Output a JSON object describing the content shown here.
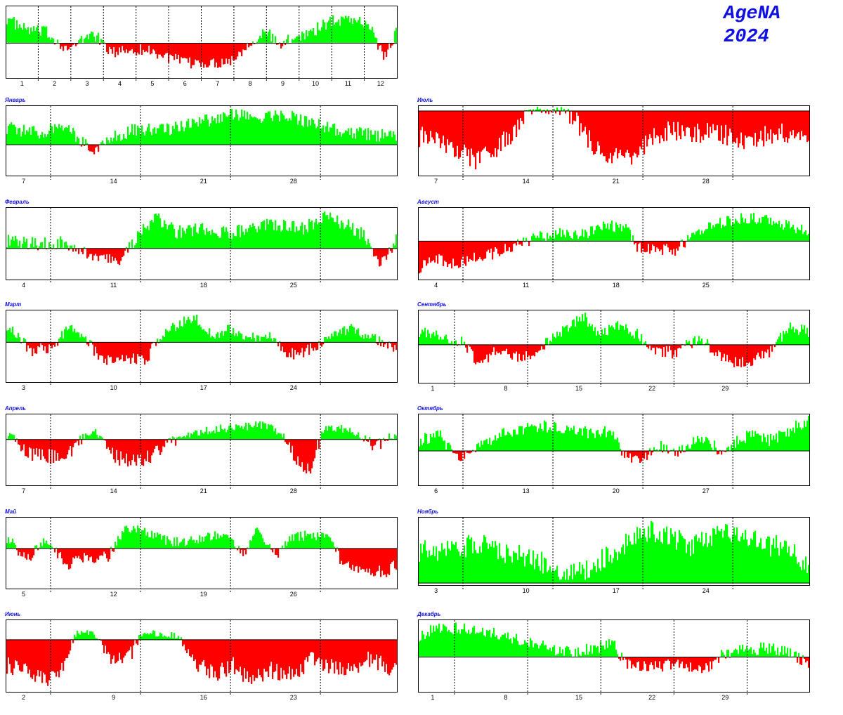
{
  "header": {
    "line1": "AgeNA",
    "line2": "2024"
  },
  "colors": {
    "positive": "#00ff00",
    "negative": "#ff0000",
    "frame": "#000000",
    "month_label": "#1010e0"
  },
  "chart_data": [
    {
      "type": "bar",
      "title": "",
      "axis_ticks": [
        "1",
        "2",
        "3",
        "4",
        "5",
        "6",
        "7",
        "8",
        "9",
        "10",
        "11",
        "12"
      ],
      "grid_dividers": 11,
      "profile": [
        [
          0,
          0.7
        ],
        [
          0.04,
          0.4
        ],
        [
          0.1,
          0.3
        ],
        [
          0.16,
          -0.2
        ],
        [
          0.22,
          0.3
        ],
        [
          0.27,
          -0.3
        ],
        [
          0.3,
          -0.2
        ],
        [
          0.36,
          -0.2
        ],
        [
          0.41,
          -0.4
        ],
        [
          0.46,
          -0.6
        ],
        [
          0.53,
          -0.6
        ],
        [
          0.58,
          -0.5
        ],
        [
          0.63,
          0.1
        ],
        [
          0.67,
          0.3
        ],
        [
          0.7,
          -0.1
        ],
        [
          0.74,
          0.2
        ],
        [
          0.78,
          0.3
        ],
        [
          0.83,
          0.6
        ],
        [
          0.88,
          0.7
        ],
        [
          0.93,
          0.5
        ],
        [
          0.97,
          -0.4
        ],
        [
          1,
          0.3
        ]
      ]
    },
    {
      "type": "bar",
      "title": "Январь",
      "axis_ticks": [
        "7",
        "14",
        "21",
        "28"
      ],
      "grid_dividers": 4,
      "ylim_pos": 0.4,
      "profile": [
        [
          0,
          0.45
        ],
        [
          0.08,
          0.3
        ],
        [
          0.15,
          0.55
        ],
        [
          0.19,
          0.1
        ],
        [
          0.22,
          -0.2
        ],
        [
          0.26,
          0.15
        ],
        [
          0.33,
          0.4
        ],
        [
          0.42,
          0.4
        ],
        [
          0.5,
          0.6
        ],
        [
          0.58,
          0.8
        ],
        [
          0.65,
          0.7
        ],
        [
          0.72,
          0.8
        ],
        [
          0.78,
          0.55
        ],
        [
          0.87,
          0.35
        ],
        [
          0.95,
          0.25
        ],
        [
          1,
          0.2
        ]
      ]
    },
    {
      "type": "bar",
      "title": "Июль",
      "axis_ticks": [
        "7",
        "14",
        "21",
        "28"
      ],
      "grid_dividers": 4,
      "ylim_pos": 0.15,
      "profile": [
        [
          0,
          -0.4
        ],
        [
          0.05,
          -0.5
        ],
        [
          0.1,
          -0.6
        ],
        [
          0.15,
          -0.8
        ],
        [
          0.2,
          -0.6
        ],
        [
          0.26,
          -0.2
        ],
        [
          0.3,
          0.1
        ],
        [
          0.36,
          0.1
        ],
        [
          0.42,
          -0.3
        ],
        [
          0.47,
          -0.7
        ],
        [
          0.53,
          -0.8
        ],
        [
          0.58,
          -0.5
        ],
        [
          0.63,
          -0.3
        ],
        [
          0.7,
          -0.4
        ],
        [
          0.75,
          -0.3
        ],
        [
          0.8,
          -0.4
        ],
        [
          0.86,
          -0.5
        ],
        [
          0.92,
          -0.3
        ],
        [
          1,
          -0.5
        ]
      ]
    },
    {
      "type": "bar",
      "title": "Февраль",
      "axis_ticks": [
        "4",
        "11",
        "18",
        "25"
      ],
      "grid_dividers": 4,
      "profile": [
        [
          0,
          0.2
        ],
        [
          0.08,
          0.1
        ],
        [
          0.15,
          0.15
        ],
        [
          0.22,
          -0.25
        ],
        [
          0.29,
          -0.4
        ],
        [
          0.33,
          0.25
        ],
        [
          0.38,
          0.8
        ],
        [
          0.44,
          0.4
        ],
        [
          0.5,
          0.5
        ],
        [
          0.57,
          0.35
        ],
        [
          0.63,
          0.55
        ],
        [
          0.7,
          0.6
        ],
        [
          0.76,
          0.5
        ],
        [
          0.82,
          0.8
        ],
        [
          0.87,
          0.6
        ],
        [
          0.92,
          0.3
        ],
        [
          0.96,
          -0.5
        ],
        [
          1,
          0.2
        ]
      ]
    },
    {
      "type": "bar",
      "title": "Август",
      "axis_ticks": [
        "4",
        "11",
        "18",
        "25"
      ],
      "grid_dividers": 4,
      "profile": [
        [
          0,
          -0.7
        ],
        [
          0.05,
          -0.5
        ],
        [
          0.1,
          -0.6
        ],
        [
          0.15,
          -0.4
        ],
        [
          0.2,
          -0.3
        ],
        [
          0.25,
          -0.1
        ],
        [
          0.3,
          0.1
        ],
        [
          0.36,
          0.3
        ],
        [
          0.42,
          0.2
        ],
        [
          0.48,
          0.5
        ],
        [
          0.53,
          0.4
        ],
        [
          0.56,
          -0.15
        ],
        [
          0.62,
          -0.25
        ],
        [
          0.66,
          -0.25
        ],
        [
          0.7,
          0.2
        ],
        [
          0.76,
          0.5
        ],
        [
          0.82,
          0.7
        ],
        [
          0.88,
          0.7
        ],
        [
          0.94,
          0.5
        ],
        [
          1,
          0.3
        ]
      ]
    },
    {
      "type": "bar",
      "title": "Март",
      "axis_ticks": [
        "3",
        "10",
        "17",
        "24"
      ],
      "grid_dividers": 4,
      "profile": [
        [
          0,
          0.55
        ],
        [
          0.06,
          -0.2
        ],
        [
          0.12,
          -0.15
        ],
        [
          0.16,
          0.5
        ],
        [
          0.2,
          0.1
        ],
        [
          0.24,
          -0.4
        ],
        [
          0.3,
          -0.5
        ],
        [
          0.36,
          -0.4
        ],
        [
          0.41,
          0.4
        ],
        [
          0.48,
          0.8
        ],
        [
          0.53,
          0.2
        ],
        [
          0.57,
          0.4
        ],
        [
          0.62,
          0.1
        ],
        [
          0.67,
          0.25
        ],
        [
          0.72,
          -0.3
        ],
        [
          0.78,
          -0.2
        ],
        [
          0.83,
          0.2
        ],
        [
          0.88,
          0.45
        ],
        [
          0.93,
          0.2
        ],
        [
          1,
          -0.25
        ]
      ]
    },
    {
      "type": "bar",
      "title": "Сентябрь",
      "axis_ticks": [
        "1",
        "8",
        "15",
        "22",
        "29"
      ],
      "grid_dividers": 5,
      "profile": [
        [
          0,
          0.4
        ],
        [
          0.06,
          0.25
        ],
        [
          0.11,
          0.1
        ],
        [
          0.15,
          -0.5
        ],
        [
          0.2,
          -0.15
        ],
        [
          0.25,
          -0.3
        ],
        [
          0.3,
          -0.2
        ],
        [
          0.34,
          0.2
        ],
        [
          0.38,
          0.5
        ],
        [
          0.42,
          0.9
        ],
        [
          0.46,
          0.3
        ],
        [
          0.51,
          0.6
        ],
        [
          0.56,
          0.3
        ],
        [
          0.61,
          -0.2
        ],
        [
          0.66,
          -0.2
        ],
        [
          0.72,
          0.2
        ],
        [
          0.78,
          -0.4
        ],
        [
          0.84,
          -0.5
        ],
        [
          0.9,
          -0.2
        ],
        [
          0.95,
          0.5
        ],
        [
          1,
          0.4
        ]
      ]
    },
    {
      "type": "bar",
      "title": "Апрель",
      "axis_ticks": [
        "7",
        "14",
        "21",
        "28"
      ],
      "grid_dividers": 4,
      "profile": [
        [
          0,
          0.2
        ],
        [
          0.05,
          -0.3
        ],
        [
          0.1,
          -0.4
        ],
        [
          0.16,
          -0.3
        ],
        [
          0.22,
          0.35
        ],
        [
          0.28,
          -0.4
        ],
        [
          0.34,
          -0.5
        ],
        [
          0.4,
          -0.2
        ],
        [
          0.46,
          0.2
        ],
        [
          0.52,
          0.4
        ],
        [
          0.58,
          0.5
        ],
        [
          0.65,
          0.6
        ],
        [
          0.7,
          0.35
        ],
        [
          0.74,
          -0.4
        ],
        [
          0.78,
          -0.7
        ],
        [
          0.82,
          0.5
        ],
        [
          0.86,
          0.45
        ],
        [
          0.91,
          0.1
        ],
        [
          0.95,
          -0.15
        ],
        [
          1,
          0.2
        ]
      ]
    },
    {
      "type": "bar",
      "title": "Октябрь",
      "axis_ticks": [
        "6",
        "13",
        "20",
        "27"
      ],
      "grid_dividers": 4,
      "profile": [
        [
          0,
          0.3
        ],
        [
          0.05,
          0.45
        ],
        [
          0.1,
          -0.2
        ],
        [
          0.15,
          0.1
        ],
        [
          0.2,
          0.45
        ],
        [
          0.26,
          0.6
        ],
        [
          0.32,
          0.7
        ],
        [
          0.38,
          0.6
        ],
        [
          0.44,
          0.5
        ],
        [
          0.49,
          0.55
        ],
        [
          0.53,
          -0.15
        ],
        [
          0.57,
          -0.35
        ],
        [
          0.61,
          0.2
        ],
        [
          0.65,
          -0.1
        ],
        [
          0.7,
          0.2
        ],
        [
          0.74,
          0.35
        ],
        [
          0.78,
          -0.15
        ],
        [
          0.82,
          0.3
        ],
        [
          0.86,
          0.5
        ],
        [
          0.9,
          0.3
        ],
        [
          0.95,
          0.55
        ],
        [
          1,
          0.9
        ]
      ]
    },
    {
      "type": "bar",
      "title": "Май",
      "axis_ticks": [
        "5",
        "12",
        "19",
        "26"
      ],
      "grid_dividers": 4,
      "profile": [
        [
          0,
          0.35
        ],
        [
          0.05,
          -0.3
        ],
        [
          0.1,
          0.35
        ],
        [
          0.15,
          -0.4
        ],
        [
          0.2,
          -0.25
        ],
        [
          0.26,
          -0.2
        ],
        [
          0.31,
          0.7
        ],
        [
          0.36,
          0.5
        ],
        [
          0.4,
          0.3
        ],
        [
          0.46,
          0.2
        ],
        [
          0.51,
          0.4
        ],
        [
          0.56,
          0.5
        ],
        [
          0.61,
          -0.1
        ],
        [
          0.64,
          0.6
        ],
        [
          0.69,
          -0.2
        ],
        [
          0.73,
          0.35
        ],
        [
          0.78,
          0.45
        ],
        [
          0.82,
          0.4
        ],
        [
          0.86,
          -0.35
        ],
        [
          0.92,
          -0.5
        ],
        [
          0.97,
          -0.6
        ],
        [
          1,
          -0.4
        ]
      ]
    },
    {
      "type": "bar",
      "title": "Ноябрь",
      "axis_ticks": [
        "3",
        "10",
        "17",
        "24"
      ],
      "grid_dividers": 4,
      "ylim_neg": 0.0,
      "profile": [
        [
          0,
          0.5
        ],
        [
          0.05,
          0.45
        ],
        [
          0.1,
          0.55
        ],
        [
          0.15,
          0.6
        ],
        [
          0.2,
          0.5
        ],
        [
          0.25,
          0.45
        ],
        [
          0.3,
          0.35
        ],
        [
          0.34,
          0.25
        ],
        [
          0.38,
          0.1
        ],
        [
          0.41,
          0.15
        ],
        [
          0.45,
          0.3
        ],
        [
          0.5,
          0.45
        ],
        [
          0.55,
          0.75
        ],
        [
          0.6,
          0.8
        ],
        [
          0.65,
          0.7
        ],
        [
          0.7,
          0.55
        ],
        [
          0.74,
          0.7
        ],
        [
          0.79,
          0.8
        ],
        [
          0.85,
          0.7
        ],
        [
          0.89,
          0.55
        ],
        [
          0.93,
          0.6
        ],
        [
          0.97,
          0.4
        ],
        [
          1,
          0.3
        ]
      ]
    },
    {
      "type": "bar",
      "title": "Июнь",
      "axis_ticks": [
        "2",
        "9",
        "16",
        "23"
      ],
      "grid_dividers": 4,
      "profile": [
        [
          0,
          -0.5
        ],
        [
          0.05,
          -0.6
        ],
        [
          0.1,
          -0.8
        ],
        [
          0.15,
          -0.5
        ],
        [
          0.18,
          0.4
        ],
        [
          0.22,
          0.3
        ],
        [
          0.27,
          -0.5
        ],
        [
          0.32,
          -0.3
        ],
        [
          0.35,
          0.4
        ],
        [
          0.4,
          0.3
        ],
        [
          0.44,
          0.2
        ],
        [
          0.48,
          -0.4
        ],
        [
          0.53,
          -0.7
        ],
        [
          0.58,
          -0.5
        ],
        [
          0.63,
          -0.8
        ],
        [
          0.68,
          -0.6
        ],
        [
          0.73,
          -0.7
        ],
        [
          0.78,
          -0.4
        ],
        [
          0.83,
          -0.5
        ],
        [
          0.88,
          -0.6
        ],
        [
          0.93,
          -0.4
        ],
        [
          1,
          -0.6
        ]
      ]
    },
    {
      "type": "bar",
      "title": "Декабрь",
      "axis_ticks": [
        "1",
        "8",
        "15",
        "22",
        "29"
      ],
      "grid_dividers": 5,
      "profile": [
        [
          0,
          0.6
        ],
        [
          0.05,
          0.8
        ],
        [
          0.1,
          0.8
        ],
        [
          0.15,
          0.7
        ],
        [
          0.2,
          0.65
        ],
        [
          0.25,
          0.5
        ],
        [
          0.3,
          0.35
        ],
        [
          0.35,
          0.2
        ],
        [
          0.4,
          0.15
        ],
        [
          0.45,
          0.25
        ],
        [
          0.5,
          0.35
        ],
        [
          0.53,
          -0.2
        ],
        [
          0.58,
          -0.25
        ],
        [
          0.62,
          -0.3
        ],
        [
          0.66,
          -0.15
        ],
        [
          0.7,
          -0.35
        ],
        [
          0.74,
          -0.3
        ],
        [
          0.78,
          0.1
        ],
        [
          0.84,
          0.2
        ],
        [
          0.9,
          0.25
        ],
        [
          0.95,
          0.1
        ],
        [
          1,
          -0.2
        ]
      ]
    }
  ]
}
